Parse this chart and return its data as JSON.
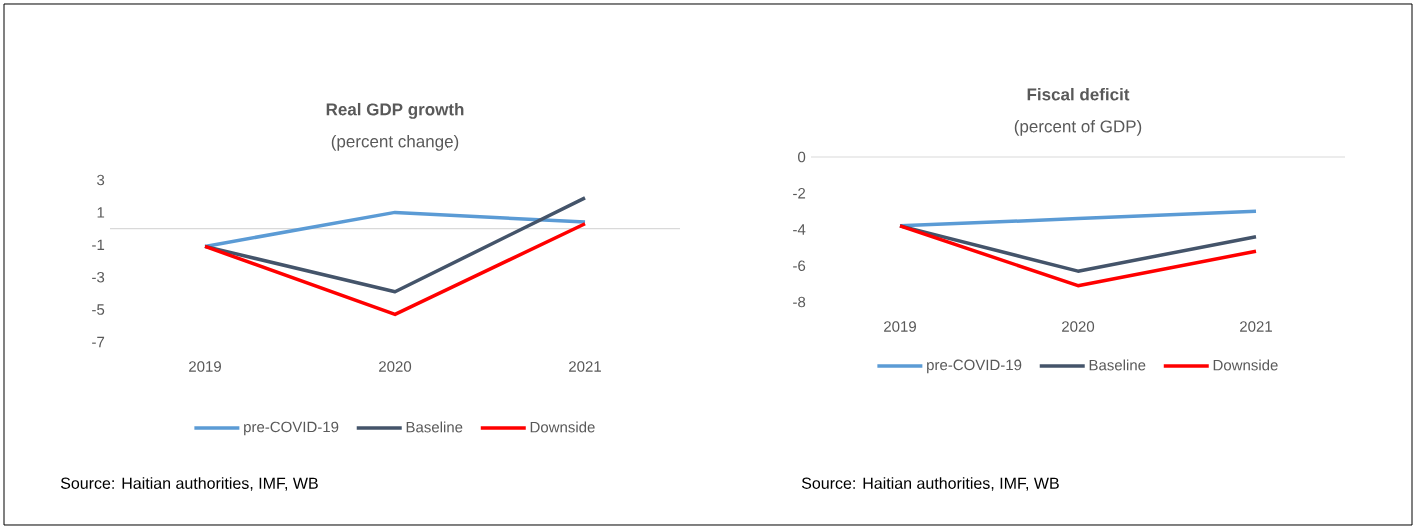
{
  "chart_data": [
    {
      "type": "line",
      "title": "Real GDP growth",
      "subtitle": "(percent change)",
      "categories": [
        "2019",
        "2020",
        "2021"
      ],
      "series": [
        {
          "name": "pre-COVID-19",
          "color": "#5b9bd5",
          "values": [
            -1.1,
            1.0,
            0.4
          ]
        },
        {
          "name": "Baseline",
          "color": "#44546a",
          "values": [
            -1.1,
            -3.9,
            1.9
          ]
        },
        {
          "name": "Downside",
          "color": "#ff0000",
          "values": [
            -1.1,
            -5.3,
            0.3
          ]
        }
      ],
      "ylim": [
        -7,
        3
      ],
      "yticks": [
        -7,
        -5,
        -3,
        -1,
        1,
        3
      ],
      "legend": "bottom",
      "marker": "none",
      "ref_lines": [
        {
          "axis": "y",
          "value": 0,
          "color": "#d9d9d9"
        }
      ],
      "annotations": [
        "Source: Haitian authorities, IMF, WB"
      ]
    },
    {
      "type": "line",
      "title": "Fiscal deficit",
      "subtitle": "(percent of GDP)",
      "categories": [
        "2019",
        "2020",
        "2021"
      ],
      "series": [
        {
          "name": "pre-COVID-19",
          "color": "#5b9bd5",
          "values": [
            -3.8,
            -3.4,
            -3.0
          ]
        },
        {
          "name": "Baseline",
          "color": "#44546a",
          "values": [
            -3.8,
            -6.3,
            -4.4
          ]
        },
        {
          "name": "Downside",
          "color": "#ff0000",
          "values": [
            -3.8,
            -7.1,
            -5.2
          ]
        }
      ],
      "ylim": [
        -8,
        0
      ],
      "yticks": [
        -8,
        -6,
        -4,
        -2,
        0
      ],
      "legend": "bottom",
      "marker": "none",
      "ref_lines": [
        {
          "axis": "y",
          "value": 0,
          "color": "#d9d9d9"
        }
      ],
      "annotations": [
        "Source: Haitian authorities, IMF, WB"
      ]
    }
  ]
}
